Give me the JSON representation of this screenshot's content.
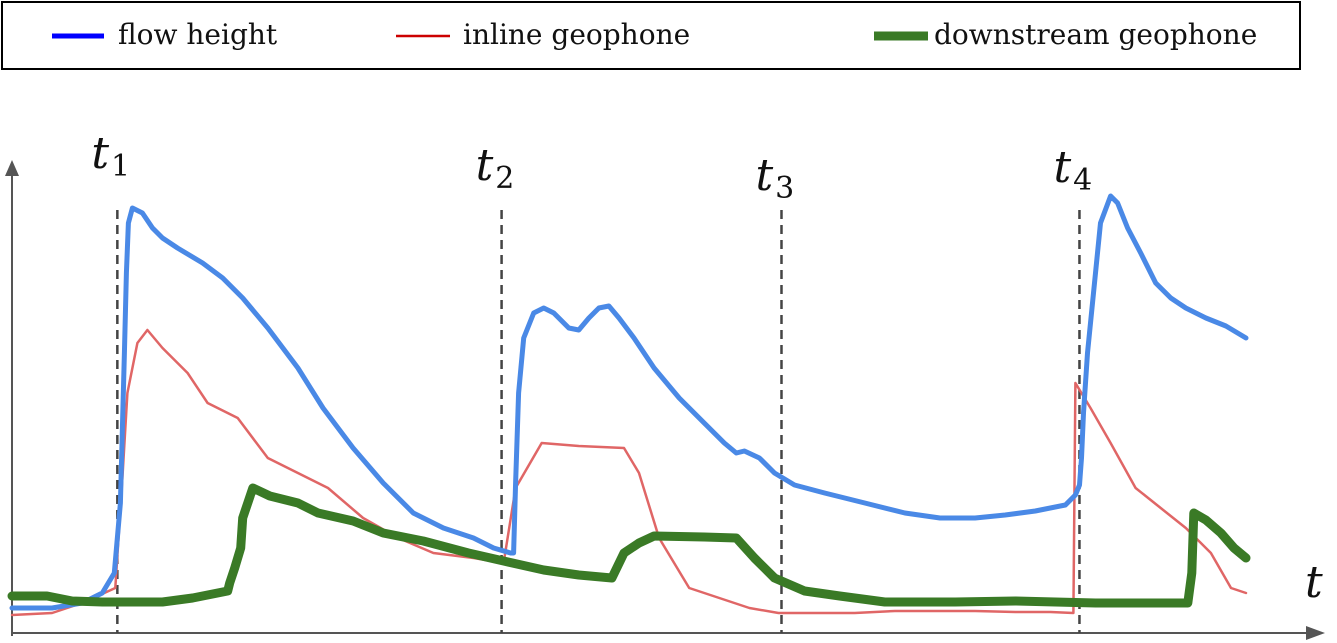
{
  "chart_data": {
    "type": "line",
    "title": "",
    "xlabel": "t",
    "ylabel": "",
    "xlim": [
      0,
      1230
    ],
    "ylim": [
      0,
      470
    ],
    "grid": false,
    "legend": {
      "placement": "top",
      "frame": true
    },
    "markers": [
      {
        "main": "t",
        "sub": "1",
        "x": 105
      },
      {
        "main": "t",
        "sub": "2",
        "x": 488
      },
      {
        "main": "t",
        "sub": "3",
        "x": 767
      },
      {
        "main": "t",
        "sub": "4",
        "x": 1064
      }
    ],
    "series": [
      {
        "name": "flow height",
        "legend_color": "#0000ff",
        "color": "#4a89e6",
        "style": "thick",
        "points": [
          [
            0,
            25
          ],
          [
            40,
            25
          ],
          [
            70,
            30
          ],
          [
            90,
            40
          ],
          [
            102,
            60
          ],
          [
            108,
            130
          ],
          [
            112,
            280
          ],
          [
            114,
            360
          ],
          [
            116,
            410
          ],
          [
            120,
            425
          ],
          [
            130,
            420
          ],
          [
            140,
            405
          ],
          [
            150,
            395
          ],
          [
            165,
            385
          ],
          [
            190,
            370
          ],
          [
            210,
            355
          ],
          [
            230,
            335
          ],
          [
            255,
            305
          ],
          [
            285,
            265
          ],
          [
            310,
            225
          ],
          [
            340,
            185
          ],
          [
            370,
            150
          ],
          [
            400,
            120
          ],
          [
            430,
            105
          ],
          [
            460,
            95
          ],
          [
            480,
            85
          ],
          [
            497,
            80
          ],
          [
            500,
            80
          ],
          [
            502,
            150
          ],
          [
            505,
            240
          ],
          [
            510,
            295
          ],
          [
            520,
            320
          ],
          [
            530,
            325
          ],
          [
            540,
            320
          ],
          [
            555,
            305
          ],
          [
            565,
            303
          ],
          [
            575,
            315
          ],
          [
            585,
            325
          ],
          [
            595,
            327
          ],
          [
            605,
            315
          ],
          [
            620,
            295
          ],
          [
            640,
            265
          ],
          [
            665,
            235
          ],
          [
            690,
            210
          ],
          [
            710,
            190
          ],
          [
            722,
            180
          ],
          [
            730,
            182
          ],
          [
            745,
            175
          ],
          [
            760,
            160
          ],
          [
            780,
            148
          ],
          [
            810,
            140
          ],
          [
            850,
            130
          ],
          [
            890,
            120
          ],
          [
            925,
            115
          ],
          [
            960,
            115
          ],
          [
            990,
            118
          ],
          [
            1020,
            122
          ],
          [
            1050,
            128
          ],
          [
            1060,
            138
          ],
          [
            1064,
            148
          ],
          [
            1066,
            175
          ],
          [
            1068,
            220
          ],
          [
            1072,
            280
          ],
          [
            1076,
            320
          ],
          [
            1080,
            360
          ],
          [
            1085,
            410
          ],
          [
            1095,
            437
          ],
          [
            1102,
            430
          ],
          [
            1112,
            405
          ],
          [
            1125,
            380
          ],
          [
            1140,
            350
          ],
          [
            1155,
            335
          ],
          [
            1170,
            325
          ],
          [
            1190,
            315
          ],
          [
            1210,
            307
          ],
          [
            1230,
            295
          ]
        ]
      },
      {
        "name": "inline geophone",
        "legend_color": "#cc0000",
        "color": "#e06666",
        "style": "thin",
        "points": [
          [
            0,
            18
          ],
          [
            40,
            20
          ],
          [
            70,
            30
          ],
          [
            103,
            45
          ],
          [
            110,
            155
          ],
          [
            115,
            240
          ],
          [
            125,
            290
          ],
          [
            135,
            303
          ],
          [
            150,
            285
          ],
          [
            175,
            260
          ],
          [
            195,
            230
          ],
          [
            225,
            215
          ],
          [
            255,
            175
          ],
          [
            285,
            160
          ],
          [
            315,
            145
          ],
          [
            350,
            115
          ],
          [
            385,
            95
          ],
          [
            420,
            80
          ],
          [
            460,
            75
          ],
          [
            490,
            70
          ],
          [
            502,
            145
          ],
          [
            528,
            190
          ],
          [
            565,
            187
          ],
          [
            610,
            185
          ],
          [
            625,
            160
          ],
          [
            645,
            95
          ],
          [
            675,
            45
          ],
          [
            705,
            35
          ],
          [
            735,
            25
          ],
          [
            764,
            20
          ],
          [
            800,
            20
          ],
          [
            840,
            20
          ],
          [
            880,
            22
          ],
          [
            920,
            22
          ],
          [
            960,
            22
          ],
          [
            1000,
            21
          ],
          [
            1035,
            21
          ],
          [
            1058,
            20
          ],
          [
            1060,
            250
          ],
          [
            1075,
            225
          ],
          [
            1095,
            190
          ],
          [
            1120,
            145
          ],
          [
            1145,
            125
          ],
          [
            1170,
            105
          ],
          [
            1195,
            80
          ],
          [
            1215,
            45
          ],
          [
            1230,
            40
          ]
        ]
      },
      {
        "name": "downstream geophone",
        "legend_color": "#3a7a26",
        "color": "#3a7a26",
        "style": "bold",
        "points": [
          [
            0,
            37
          ],
          [
            35,
            37
          ],
          [
            60,
            32
          ],
          [
            90,
            31
          ],
          [
            150,
            31
          ],
          [
            180,
            35
          ],
          [
            215,
            42
          ],
          [
            217,
            50
          ],
          [
            222,
            65
          ],
          [
            228,
            85
          ],
          [
            230,
            115
          ],
          [
            240,
            145
          ],
          [
            257,
            137
          ],
          [
            285,
            130
          ],
          [
            305,
            120
          ],
          [
            340,
            112
          ],
          [
            370,
            100
          ],
          [
            410,
            92
          ],
          [
            455,
            80
          ],
          [
            490,
            72
          ],
          [
            530,
            63
          ],
          [
            565,
            58
          ],
          [
            598,
            55
          ],
          [
            610,
            80
          ],
          [
            625,
            90
          ],
          [
            640,
            97
          ],
          [
            690,
            96
          ],
          [
            722,
            95
          ],
          [
            740,
            75
          ],
          [
            760,
            55
          ],
          [
            790,
            42
          ],
          [
            825,
            37
          ],
          [
            870,
            31
          ],
          [
            940,
            31
          ],
          [
            1000,
            32
          ],
          [
            1040,
            31
          ],
          [
            1080,
            30
          ],
          [
            1140,
            30
          ],
          [
            1172,
            30
          ],
          [
            1176,
            60
          ],
          [
            1178,
            120
          ],
          [
            1190,
            113
          ],
          [
            1205,
            100
          ],
          [
            1218,
            85
          ],
          [
            1230,
            75
          ]
        ]
      }
    ]
  }
}
